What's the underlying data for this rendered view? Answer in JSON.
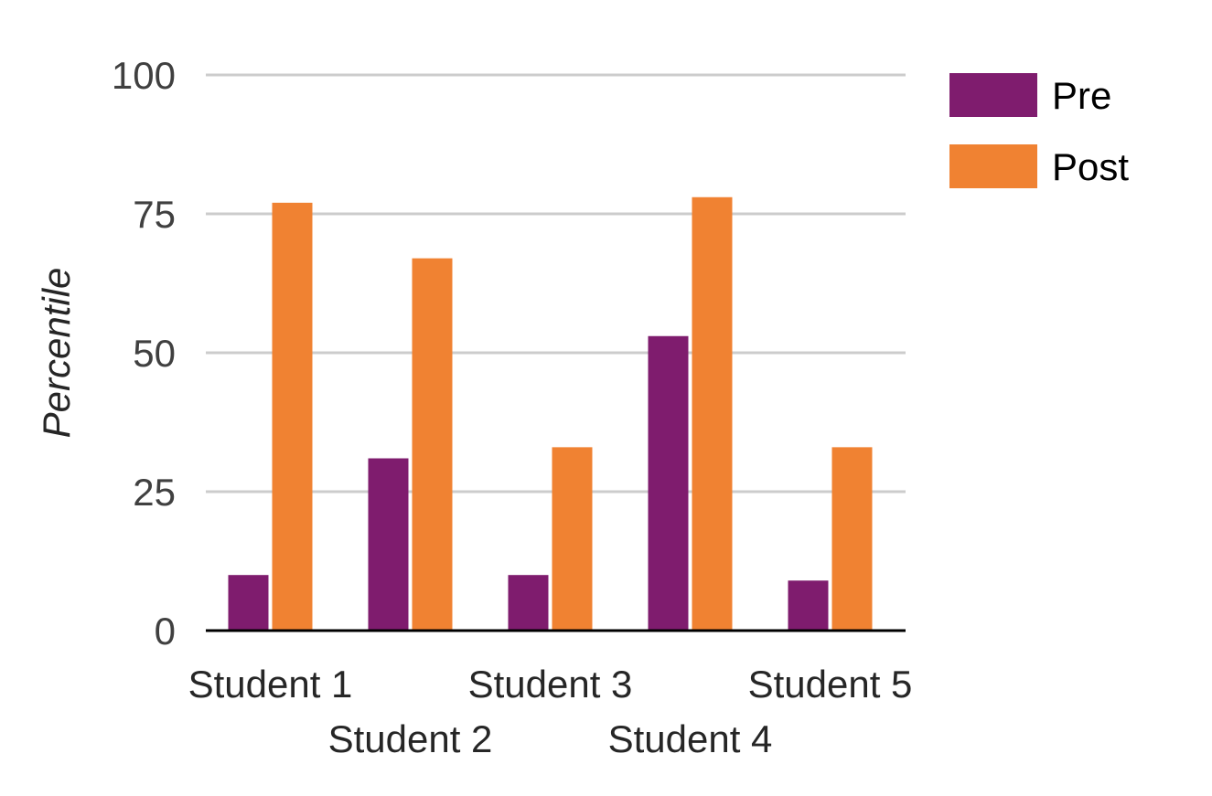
{
  "chart_data": {
    "type": "bar",
    "title": "",
    "xlabel": "",
    "ylabel": "Percentile",
    "ylim": [
      0,
      100
    ],
    "yticks": [
      0,
      25,
      50,
      75,
      100
    ],
    "grid": true,
    "legend_position": "top-right",
    "categories": [
      "Student 1",
      "Student 2",
      "Student 3",
      "Student 4",
      "Student 5"
    ],
    "series": [
      {
        "name": "Pre",
        "color": "#7F1C6E",
        "values": [
          10,
          31,
          10,
          53,
          9
        ]
      },
      {
        "name": "Post",
        "color": "#F08232",
        "values": [
          77,
          67,
          33,
          78,
          33
        ]
      }
    ]
  }
}
